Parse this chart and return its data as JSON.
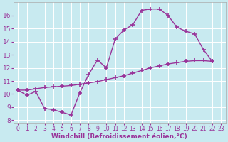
{
  "background_color": "#c8eaf0",
  "line_color": "#993399",
  "marker": "+",
  "markersize": 4,
  "markeredgewidth": 1.2,
  "linewidth": 1.0,
  "xlabel": "Windchill (Refroidissement éolien,°C)",
  "xlabel_fontsize": 6.5,
  "xtick_fontsize": 5.5,
  "ytick_fontsize": 6.5,
  "xlim": [
    -0.5,
    23.5
  ],
  "ylim": [
    7.8,
    17.0
  ],
  "yticks": [
    8,
    9,
    10,
    11,
    12,
    13,
    14,
    15,
    16
  ],
  "xticks": [
    0,
    1,
    2,
    3,
    4,
    5,
    6,
    7,
    8,
    9,
    10,
    11,
    12,
    13,
    14,
    15,
    16,
    17,
    18,
    19,
    20,
    21,
    22,
    23
  ],
  "curve1_x": [
    0,
    1,
    2,
    3,
    4,
    5,
    6,
    7,
    8,
    9,
    10,
    11,
    12,
    13,
    14,
    15,
    16,
    17,
    18,
    19,
    20,
    21,
    22
  ],
  "curve1_y": [
    10.3,
    9.9,
    10.2,
    8.9,
    8.8,
    8.6,
    8.4,
    10.1,
    11.5,
    12.6,
    12.0,
    14.2,
    14.9,
    15.3,
    16.4,
    16.5,
    16.5,
    16.0,
    15.1,
    14.8,
    14.6,
    13.4,
    12.5
  ],
  "curve2_x": [
    0,
    1,
    2,
    3,
    4,
    5,
    6,
    7,
    8,
    9,
    10,
    11,
    12,
    13,
    14,
    15,
    16,
    17,
    18,
    19,
    20,
    21,
    22
  ],
  "curve2_y": [
    10.3,
    10.3,
    10.4,
    10.5,
    10.55,
    10.6,
    10.65,
    10.75,
    10.85,
    10.95,
    11.1,
    11.25,
    11.4,
    11.6,
    11.8,
    12.0,
    12.15,
    12.3,
    12.4,
    12.5,
    12.55,
    12.55,
    12.5
  ]
}
